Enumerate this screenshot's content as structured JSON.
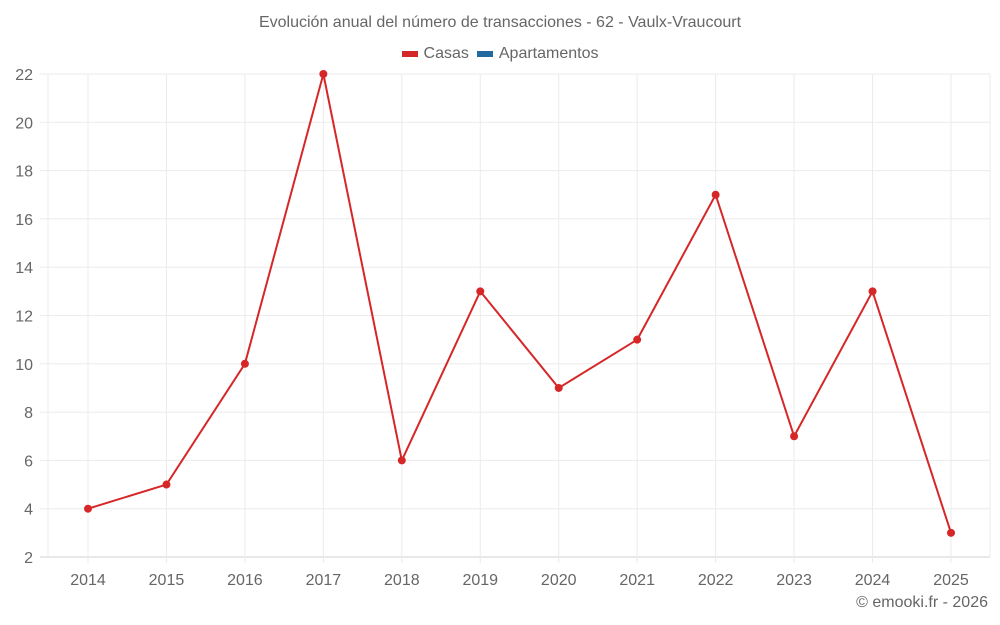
{
  "chart_data": {
    "type": "line",
    "title": "Evolución anual del número de transacciones - 62 - Vaulx-Vraucourt",
    "categories": [
      "2014",
      "2015",
      "2016",
      "2017",
      "2018",
      "2019",
      "2020",
      "2021",
      "2022",
      "2023",
      "2024",
      "2025"
    ],
    "series": [
      {
        "name": "Casas",
        "color": "#d62728",
        "values": [
          4,
          5,
          10,
          22,
          6,
          13,
          9,
          11,
          17,
          7,
          13,
          3
        ]
      },
      {
        "name": "Apartamentos",
        "color": "#1f6a9e",
        "values": []
      }
    ],
    "xlabel": "",
    "ylabel": "",
    "ylim": [
      2,
      22
    ],
    "yticks": [
      2,
      4,
      6,
      8,
      10,
      12,
      14,
      16,
      18,
      20,
      22
    ],
    "grid": true,
    "legend_position": "top"
  },
  "credit": "© emooki.fr - 2026"
}
